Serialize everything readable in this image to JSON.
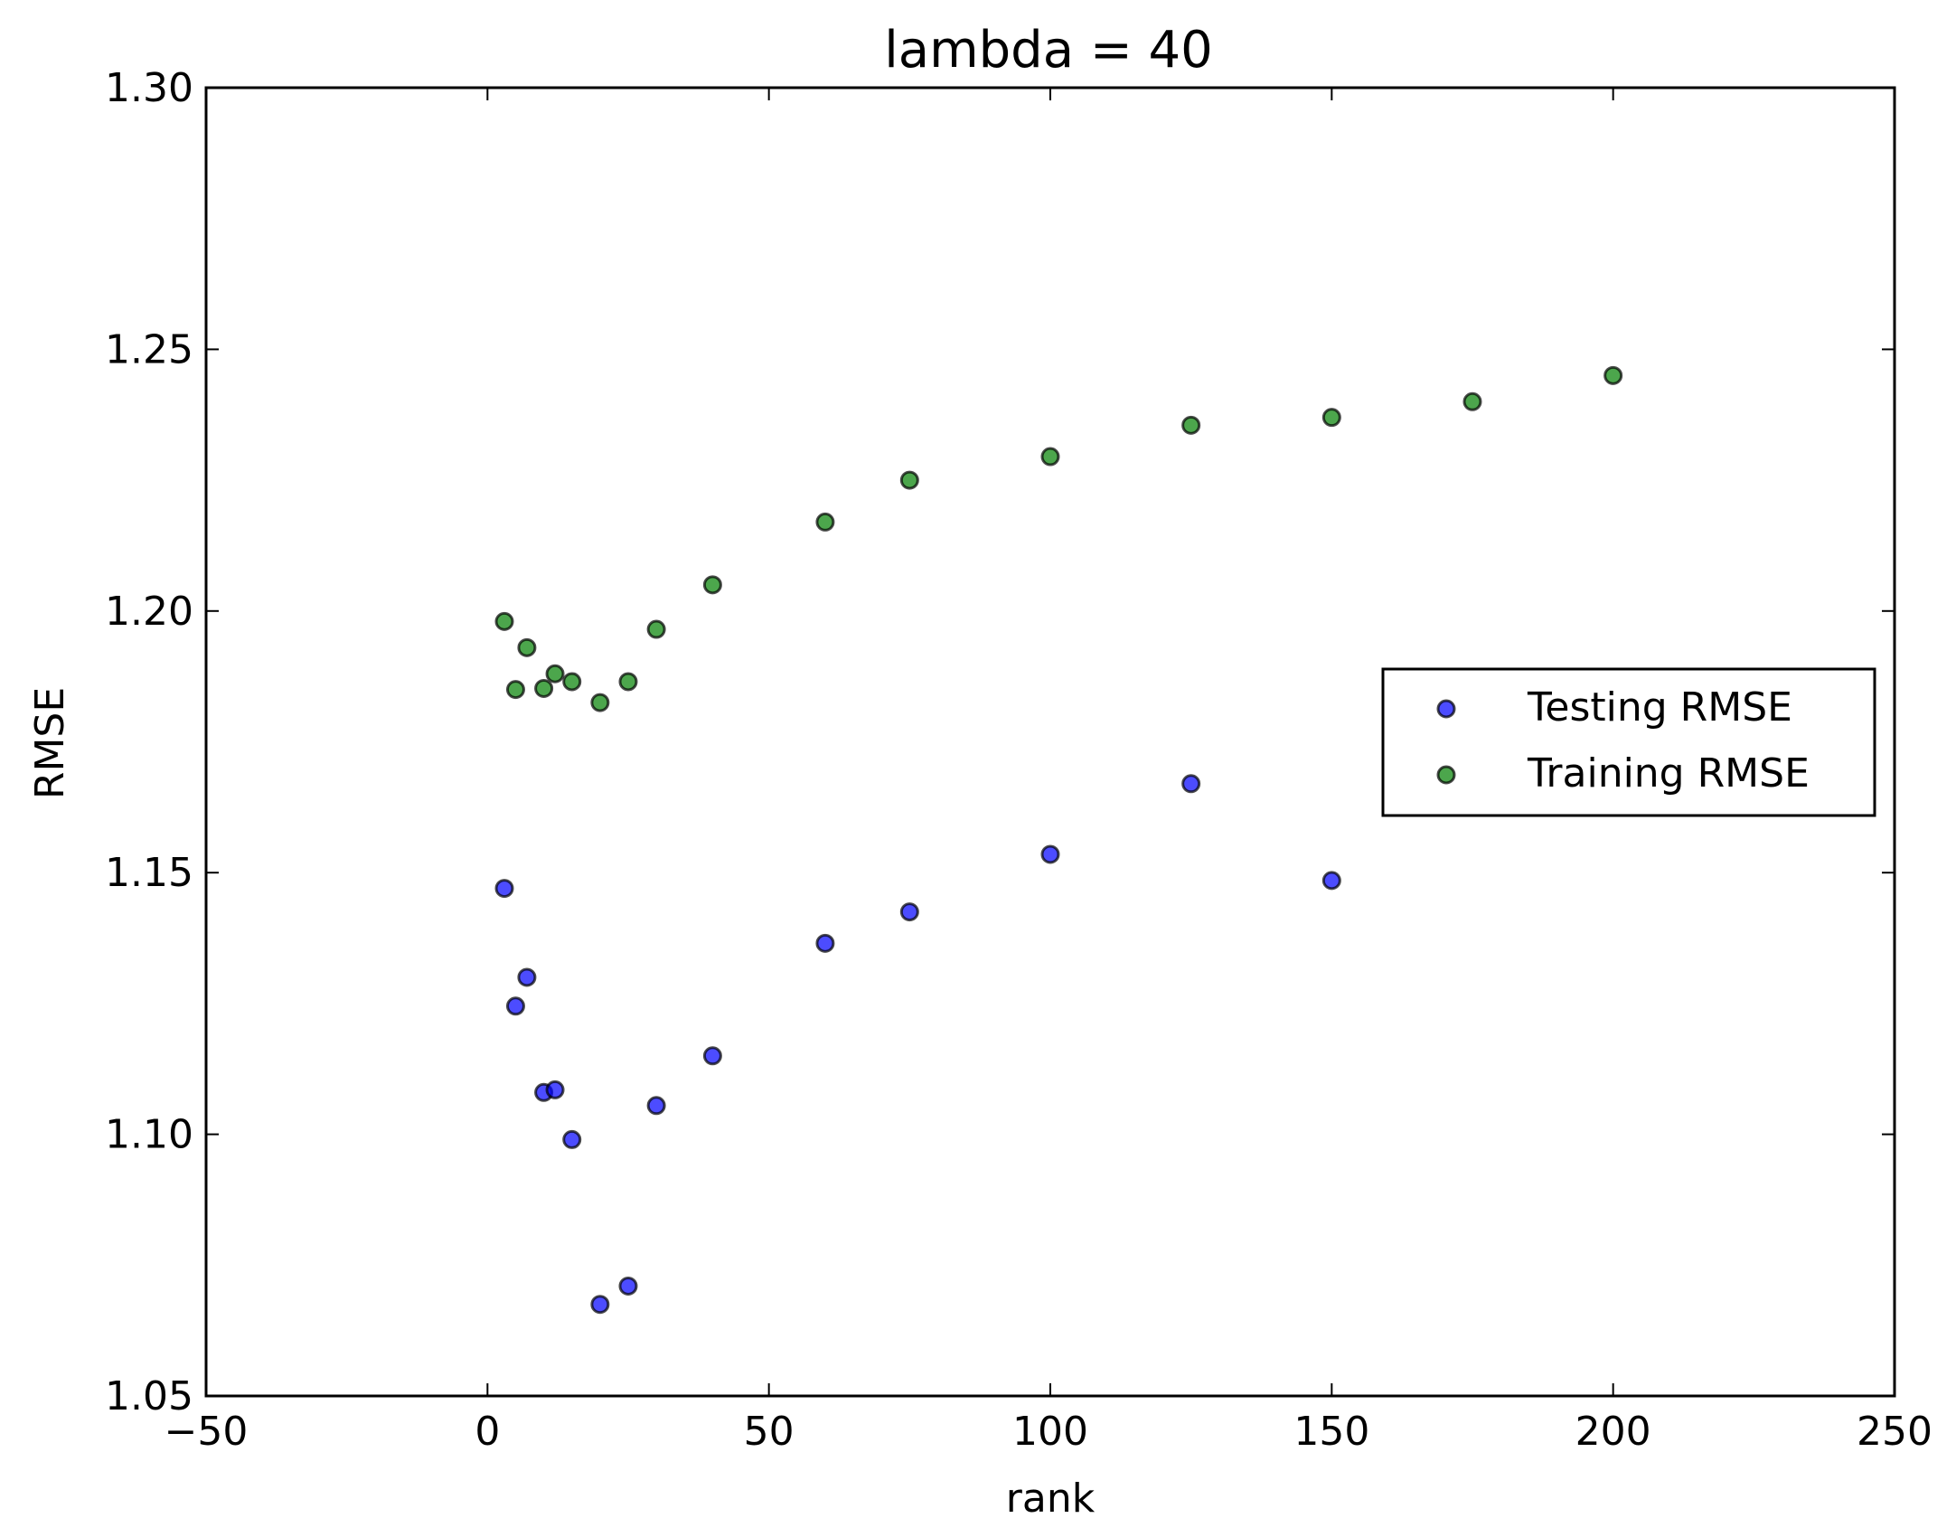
{
  "chart_data": {
    "type": "scatter",
    "title": "lambda = 40",
    "xlabel": "rank",
    "ylabel": "RMSE",
    "xlim": [
      -50,
      250
    ],
    "ylim": [
      1.05,
      1.3
    ],
    "xticks": [
      -50,
      0,
      50,
      100,
      150,
      200,
      250
    ],
    "xtick_labels": [
      "−50",
      "0",
      "50",
      "100",
      "150",
      "200",
      "250"
    ],
    "yticks": [
      1.05,
      1.1,
      1.15,
      1.2,
      1.25,
      1.3
    ],
    "ytick_labels": [
      "1.05",
      "1.10",
      "1.15",
      "1.20",
      "1.25",
      "1.30"
    ],
    "grid": false,
    "legend_position": "center-right",
    "series": [
      {
        "name": "Testing RMSE",
        "color": "#0000ff",
        "points": [
          {
            "x": 3,
            "y": 1.147
          },
          {
            "x": 5,
            "y": 1.1245
          },
          {
            "x": 7,
            "y": 1.13
          },
          {
            "x": 10,
            "y": 1.108
          },
          {
            "x": 12,
            "y": 1.1085
          },
          {
            "x": 15,
            "y": 1.099
          },
          {
            "x": 20,
            "y": 1.0675
          },
          {
            "x": 25,
            "y": 1.071
          },
          {
            "x": 30,
            "y": 1.1055
          },
          {
            "x": 40,
            "y": 1.115
          },
          {
            "x": 60,
            "y": 1.1365
          },
          {
            "x": 75,
            "y": 1.1425
          },
          {
            "x": 100,
            "y": 1.1535
          },
          {
            "x": 125,
            "y": 1.167
          },
          {
            "x": 150,
            "y": 1.1485
          }
        ]
      },
      {
        "name": "Training RMSE",
        "color": "#008000",
        "points": [
          {
            "x": 3,
            "y": 1.198
          },
          {
            "x": 5,
            "y": 1.185
          },
          {
            "x": 7,
            "y": 1.193
          },
          {
            "x": 10,
            "y": 1.1852
          },
          {
            "x": 12,
            "y": 1.188
          },
          {
            "x": 15,
            "y": 1.1865
          },
          {
            "x": 20,
            "y": 1.1825
          },
          {
            "x": 25,
            "y": 1.1865
          },
          {
            "x": 30,
            "y": 1.1965
          },
          {
            "x": 40,
            "y": 1.205
          },
          {
            "x": 60,
            "y": 1.217
          },
          {
            "x": 75,
            "y": 1.225
          },
          {
            "x": 100,
            "y": 1.2295
          },
          {
            "x": 125,
            "y": 1.2355
          },
          {
            "x": 150,
            "y": 1.237
          },
          {
            "x": 175,
            "y": 1.24
          },
          {
            "x": 200,
            "y": 1.245
          }
        ]
      }
    ]
  }
}
